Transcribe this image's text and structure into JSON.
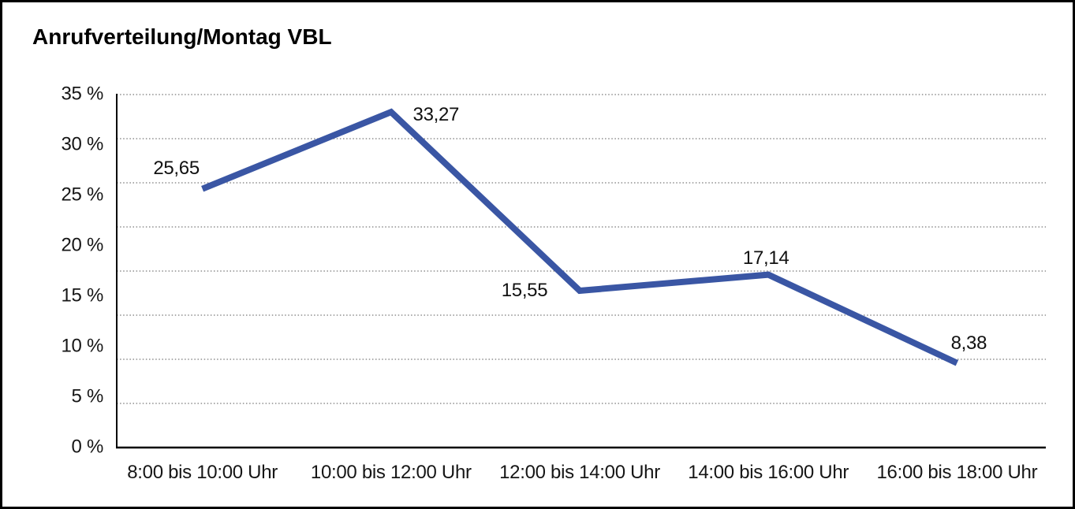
{
  "title": "Anrufverteilung/Montag VBL",
  "chart_data": {
    "type": "line",
    "title": "Anrufverteilung/Montag VBL",
    "categories": [
      "8:00 bis 10:00 Uhr",
      "10:00 bis 12:00 Uhr",
      "12:00 bis 14:00 Uhr",
      "14:00 bis 16:00 Uhr",
      "16:00 bis 18:00 Uhr"
    ],
    "values": [
      25.65,
      33.27,
      15.55,
      17.14,
      8.38
    ],
    "value_labels": [
      "25,65",
      "33,27",
      "15,55",
      "17,14",
      "8,38"
    ],
    "y_ticks": [
      "35 %",
      "30 %",
      "25 %",
      "20 %",
      "15 %",
      "10 %",
      "5 %",
      "0 %"
    ],
    "y_tick_values": [
      35,
      30,
      25,
      20,
      15,
      10,
      5,
      0
    ],
    "ylim": [
      0,
      35
    ],
    "xlabel": "",
    "ylabel": "",
    "legend": "none",
    "grid": "horizontal-dotted",
    "grid_divisions": 8,
    "line_color": "#3A56A4",
    "axis_color": "#000000",
    "grid_color": "#777777",
    "background_color": "#ffffff"
  }
}
